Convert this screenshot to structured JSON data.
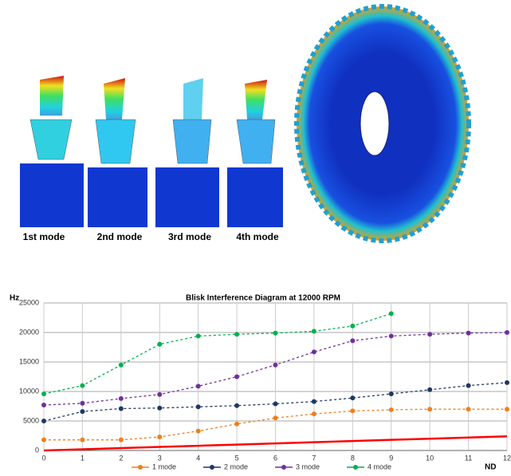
{
  "figure": {
    "mode_labels": [
      "1st mode",
      "2nd mode",
      "3rd mode",
      "4th mode"
    ]
  },
  "chart_data": {
    "type": "line",
    "title": "Blisk Interference Diagram at 12000 RPM",
    "y_label": "Hz",
    "x_label": "ND",
    "x": [
      0,
      1,
      2,
      3,
      4,
      5,
      6,
      7,
      8,
      9,
      10,
      11,
      12
    ],
    "xlim": [
      0,
      12
    ],
    "xticks": [
      0,
      1,
      2,
      3,
      4,
      5,
      6,
      7,
      8,
      9,
      10,
      11,
      12
    ],
    "ylim": [
      0,
      25000
    ],
    "yticks": [
      0,
      5000,
      10000,
      15000,
      20000,
      25000
    ],
    "grid": true,
    "legend": "bottom",
    "series": [
      {
        "name": "1 mode",
        "color": "#f07f1a",
        "values": [
          1800,
          1800,
          1800,
          2300,
          3300,
          4500,
          5500,
          6200,
          6700,
          6900,
          7000,
          7000,
          7000
        ]
      },
      {
        "name": "2 mode",
        "color": "#1f3864",
        "values": [
          5000,
          6600,
          7100,
          7200,
          7400,
          7600,
          7900,
          8300,
          8900,
          9600,
          10300,
          11000,
          11500
        ]
      },
      {
        "name": "3 mode",
        "color": "#7030a0",
        "values": [
          7700,
          8000,
          8800,
          9500,
          10900,
          12500,
          14500,
          16700,
          18600,
          19400,
          19700,
          19900,
          20000
        ]
      },
      {
        "name": "4 mode",
        "color": "#00b050",
        "values": [
          9600,
          11000,
          14500,
          18000,
          19400,
          19700,
          19900,
          20200,
          21100,
          23200,
          null,
          null,
          null
        ]
      },
      {
        "color": "#ff0000",
        "values": [
          0,
          200,
          400,
          600,
          800,
          1000,
          1200,
          1400,
          1600,
          1800,
          2000,
          2200,
          2400
        ]
      }
    ]
  }
}
